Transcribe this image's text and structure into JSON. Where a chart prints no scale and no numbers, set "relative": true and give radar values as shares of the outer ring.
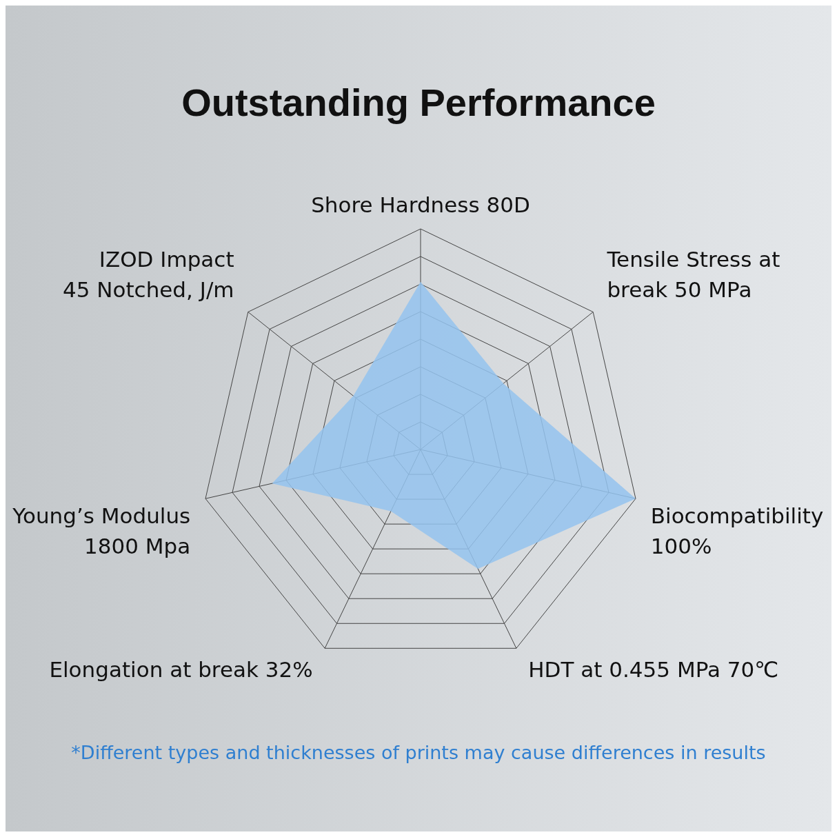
{
  "chart_data": {
    "type": "radar",
    "title": "Outstanding Performance",
    "relative": true,
    "grid": true,
    "marker": "none",
    "categories": [
      "Shore Hardness 80D",
      "Tensile Stress at\nbreak 50 MPa",
      "Biocompatibility\n100%",
      "HDT at 0.455 MPa 70℃",
      "Elongation at break 32%",
      "Young’s Modulus\n1800 Mpa",
      "IZOD Impact\n45 Notched, J/m"
    ],
    "series": [
      {
        "color": "#94c3ef",
        "values": [
          0.76,
          0.48,
          1,
          0.6,
          0.31,
          0.69,
          0.39
        ]
      }
    ],
    "annotations": [
      "*Different types and thicknesses of prints may cause differences in results"
    ]
  }
}
